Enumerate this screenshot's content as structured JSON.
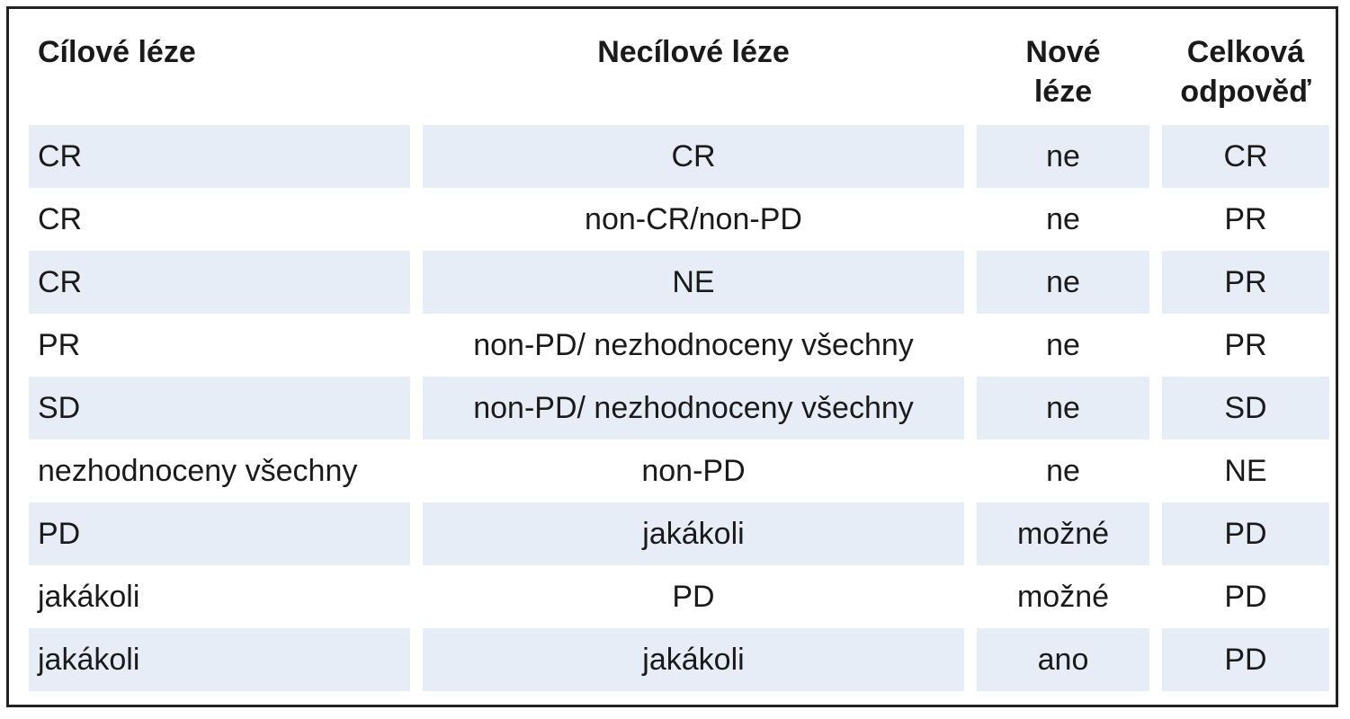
{
  "table": {
    "headers": {
      "col1": "Cílové léze",
      "col2": "Necílové léze",
      "col3_line1": "Nové",
      "col3_line2": "léze",
      "col4_line1": "Celková",
      "col4_line2": "odpověď"
    },
    "rows": [
      [
        "CR",
        "CR",
        "ne",
        "CR"
      ],
      [
        "CR",
        "non-CR/non-PD",
        "ne",
        "PR"
      ],
      [
        "CR",
        "NE",
        "ne",
        "PR"
      ],
      [
        "PR",
        "non-PD/ nezhodnoceny všechny",
        "ne",
        "PR"
      ],
      [
        "SD",
        "non-PD/ nezhodnoceny všechny",
        "ne",
        "SD"
      ],
      [
        "nezhodnoceny všechny",
        "non-PD",
        "ne",
        "NE"
      ],
      [
        "PD",
        "jakákoli",
        "možné",
        "PD"
      ],
      [
        "jakákoli",
        "PD",
        "možné",
        "PD"
      ],
      [
        "jakákoli",
        "jakákoli",
        "ano",
        "PD"
      ]
    ]
  },
  "colors": {
    "shaded_row": "#e7edf7",
    "border": "#222222"
  }
}
